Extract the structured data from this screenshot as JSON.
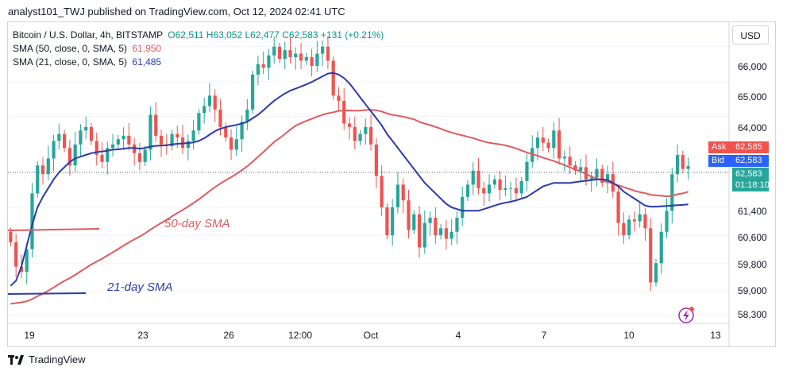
{
  "header": {
    "publisher": "analyst101_TWJ published on TradingView.com, Oct 12, 2024 02:41 UTC"
  },
  "legend": {
    "symbol": "Bitcoin / U.S. Dollar, 4h, BITSTAMP",
    "ohlc": "O62,511  H63,052  L62,477  C62,583  +131 (+0.21%)",
    "sma50_label": "SMA (50, close, 0, SMA, 5)",
    "sma50_value": "61,950",
    "sma21_label": "SMA (21, close, 0, SMA, 5)",
    "sma21_value": "61,485"
  },
  "currency": "USD",
  "price_tags": {
    "ask_label": "Ask",
    "ask_value": "62,585",
    "bid_label": "Bid",
    "bid_value": "62,583",
    "last_value": "62,583",
    "countdown": "01:18:10"
  },
  "footer": {
    "brand": "TradingView"
  },
  "colors": {
    "up": "#26a69a",
    "down": "#ef5350",
    "sma50": "#e05a5f",
    "sma21": "#2b3aa8",
    "bid": "#2962ff"
  },
  "chart_data": {
    "type": "candlestick",
    "ylim": [
      58100,
      66700
    ],
    "y_ticks": [
      "66,000",
      "65,000",
      "64,000",
      "62,585",
      "62,583",
      "61,400",
      "60,600",
      "59,800",
      "59,000",
      "58,300"
    ],
    "x_tick_labels": [
      "19",
      "23",
      "26",
      "12:00",
      "Oct",
      "4",
      "7",
      "10",
      "13"
    ],
    "annotations": [
      "50-day SMA",
      "21-day SMA"
    ],
    "candles_close": [
      60400,
      59700,
      59550,
      60200,
      61800,
      62600,
      62350,
      62800,
      63300,
      63500,
      63100,
      62600,
      63200,
      63600,
      63700,
      63300,
      62900,
      62700,
      63100,
      63200,
      63350,
      63450,
      63200,
      62950,
      62700,
      63050,
      64050,
      63450,
      63200,
      63150,
      63500,
      63400,
      63100,
      63300,
      63600,
      64100,
      64300,
      64600,
      64200,
      63700,
      63400,
      63050,
      63350,
      63850,
      64200,
      65200,
      65500,
      65400,
      65750,
      66000,
      65650,
      65900,
      65700,
      65800,
      65600,
      65700,
      65450,
      65800,
      66000,
      65600,
      64600,
      64450,
      63800,
      63700,
      63300,
      63500,
      63700,
      63200,
      62300,
      61400,
      60600,
      61400,
      62050,
      61600,
      60750,
      61200,
      60250,
      60950,
      61100,
      60600,
      60800,
      60500,
      60700,
      61100,
      61700,
      62050,
      62450,
      61950,
      61800,
      62050,
      62200,
      61900,
      61950,
      61950,
      61800,
      62150,
      62700,
      63100,
      63400,
      63250,
      63100,
      63600,
      62800,
      62850,
      62600,
      62450,
      62550,
      62200,
      62250,
      62500,
      62100,
      62350,
      61850,
      60950,
      60600,
      61050,
      61000,
      61200,
      60800,
      59250,
      59800,
      60700,
      61300,
      62350,
      62900,
      62500,
      62583
    ],
    "sma21": [
      59150,
      59300,
      59700,
      60300,
      60900,
      61400,
      61700,
      61950,
      62200,
      62400,
      62550,
      62700,
      62800,
      62850,
      62900,
      62950,
      62980,
      63000,
      63020,
      63050,
      63060,
      63080,
      63100,
      63100,
      63080,
      63100,
      63140,
      63160,
      63170,
      63180,
      63200,
      63220,
      63230,
      63240,
      63260,
      63300,
      63380,
      63480,
      63580,
      63650,
      63700,
      63730,
      63760,
      63800,
      63850,
      63950,
      64050,
      64180,
      64320,
      64450,
      64560,
      64660,
      64740,
      64800,
      64860,
      64920,
      64990,
      65070,
      65150,
      65230,
      65250,
      65200,
      65100,
      64950,
      64750,
      64550,
      64350,
      64150,
      63950,
      63750,
      63500,
      63300,
      63100,
      62900,
      62700,
      62500,
      62300,
      62100,
      61950,
      61800,
      61650,
      61500,
      61400,
      61350,
      61300,
      61300,
      61300,
      61300,
      61350,
      61400,
      61450,
      61500,
      61530,
      61560,
      61600,
      61650,
      61700,
      61800,
      61900,
      62000,
      62050,
      62100,
      62100,
      62100,
      62100,
      62120,
      62140,
      62160,
      62180,
      62200,
      62200,
      62180,
      62100,
      62000,
      61850,
      61750,
      61650,
      61550,
      61450,
      61420,
      61420,
      61430,
      61440,
      61450,
      61460,
      61470,
      61485
    ]
  }
}
